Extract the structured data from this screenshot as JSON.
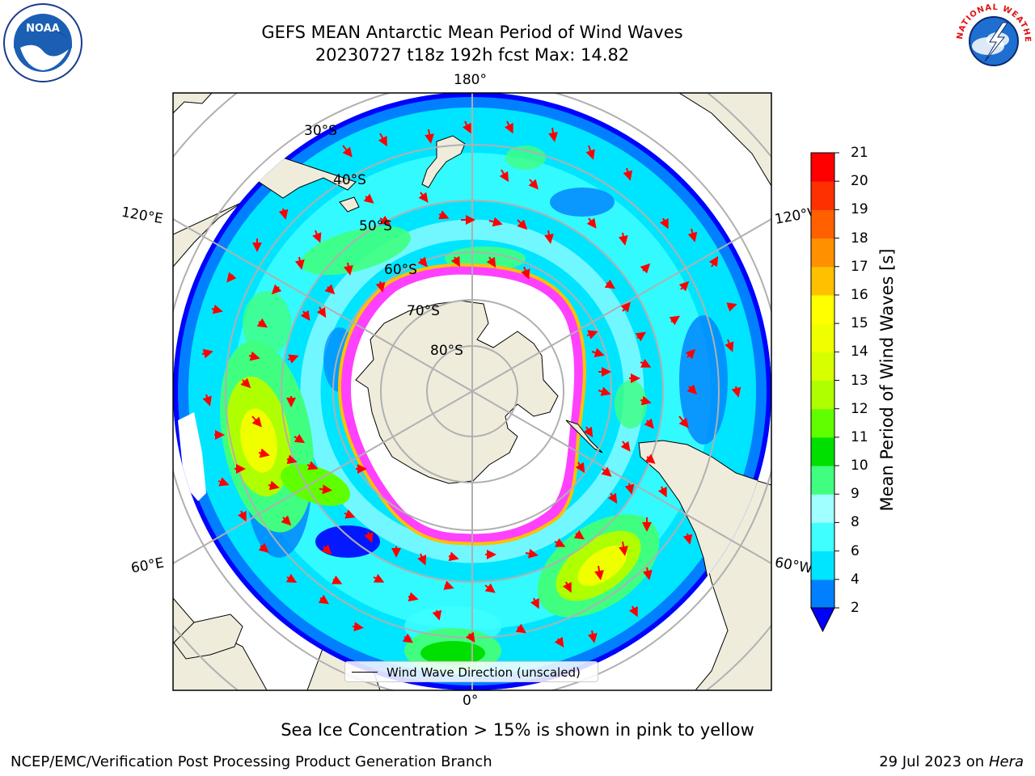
{
  "header": {
    "title_line1": "GEFS MEAN Antarctic Mean Period of Wind Waves",
    "title_line2": "20230727 t18z 192h fcst   Max: 14.82"
  },
  "logos": {
    "noaa": {
      "text": "NOAA",
      "icon": "noaa-logo-icon"
    },
    "nws": {
      "text": "NATIONAL WEATHER SERVICE",
      "icon": "nws-logo-icon"
    }
  },
  "map": {
    "projection": "south-polar-stereographic",
    "longitude_labels": {
      "top": "180°",
      "bottom": "0°",
      "left_upper": "120°E",
      "left_lower": "60°E",
      "right_upper": "120°W",
      "right_lower": "60°W"
    },
    "latitude_labels": [
      "30°S",
      "40°S",
      "50°S",
      "60°S",
      "70°S",
      "80°S"
    ],
    "colors": {
      "land": "#efecdc",
      "ice_free": "#ffffff",
      "sea_ice": "#ff40ff",
      "arrows": "#ff0000"
    }
  },
  "colorbar": {
    "label": "Mean Period of Wind Waves [s]",
    "ticks": [
      "2",
      "4",
      "6",
      "8",
      "9",
      "10",
      "11",
      "12",
      "13",
      "14",
      "15",
      "16",
      "17",
      "18",
      "19",
      "20",
      "21"
    ],
    "colors": [
      "#0000ff",
      "#0080ff",
      "#00e5ff",
      "#40ffff",
      "#a0ffff",
      "#40ff80",
      "#00e000",
      "#60ff00",
      "#b0ff00",
      "#d8ff00",
      "#f0ff00",
      "#ffff00",
      "#ffc000",
      "#ff9000",
      "#ff6000",
      "#ff3000",
      "#ff0000"
    ]
  },
  "legend": {
    "label": "Wind Wave Direction (unscaled)"
  },
  "footnote": "Sea Ice Concentration > 15% is shown in pink to yellow",
  "footer": {
    "left": "NCEP/EMC/Verification Post Processing Product Generation Branch",
    "right_prefix": "29 Jul 2023 on ",
    "right_host": "Hera"
  }
}
